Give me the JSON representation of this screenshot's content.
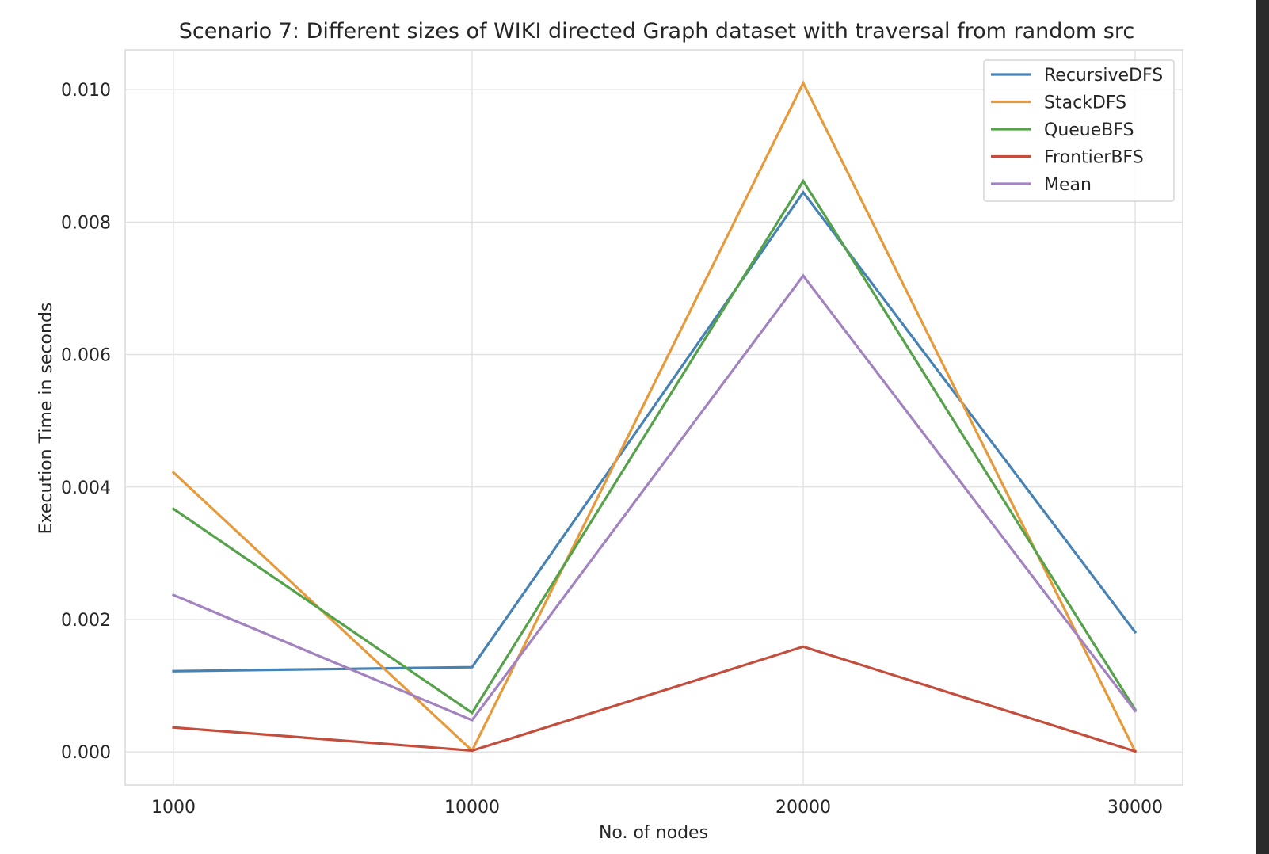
{
  "chart_data": {
    "type": "line",
    "title": "Scenario 7: Different sizes of WIKI directed Graph dataset with traversal from random src",
    "xlabel": "No. of nodes",
    "ylabel": "Execution Time in seconds",
    "categories": [
      "1000",
      "10000",
      "20000",
      "30000"
    ],
    "y_ticks": [
      "0.000",
      "0.002",
      "0.004",
      "0.006",
      "0.008",
      "0.010"
    ],
    "ylim": [
      -0.0005,
      0.0106
    ],
    "grid": true,
    "legend_position": "top-right",
    "series": [
      {
        "name": "RecursiveDFS",
        "color": "#4682b4",
        "values": [
          0.00122,
          0.00128,
          0.00845,
          0.00181
        ]
      },
      {
        "name": "StackDFS",
        "color": "#e69a3c",
        "values": [
          0.00422,
          2e-05,
          0.0101,
          1e-05
        ]
      },
      {
        "name": "QueueBFS",
        "color": "#55a24a",
        "values": [
          0.00367,
          0.00059,
          0.00862,
          0.00064
        ]
      },
      {
        "name": "FrontierBFS",
        "color": "#c44e3d",
        "values": [
          0.00037,
          2e-05,
          0.00159,
          1e-05
        ]
      },
      {
        "name": "Mean",
        "color": "#a283c0",
        "values": [
          0.00237,
          0.00048,
          0.00719,
          0.00062
        ]
      }
    ]
  }
}
